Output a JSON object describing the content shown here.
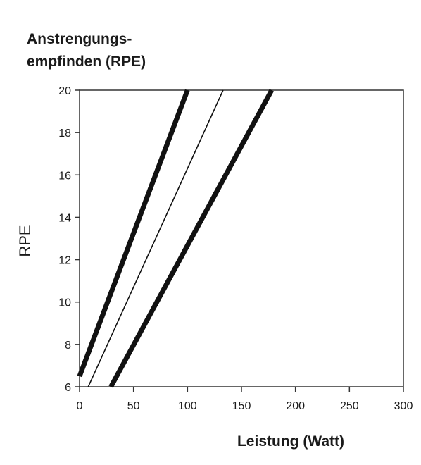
{
  "chart_data": {
    "type": "line",
    "title_lines": [
      "Anstrengungs-",
      "empfinden  (RPE)"
    ],
    "xlabel": "Leistung  (Watt)",
    "ylabel": "RPE",
    "xlim": [
      0,
      300
    ],
    "ylim": [
      6,
      20
    ],
    "xticks": [
      0,
      50,
      100,
      150,
      200,
      250,
      300
    ],
    "yticks": [
      6,
      8,
      10,
      12,
      14,
      16,
      18,
      20
    ],
    "grid": false,
    "colors": {
      "line": "#111111",
      "axis": "#333333"
    },
    "series": [
      {
        "style": "thick",
        "x": [
          0,
          100
        ],
        "y": [
          6.5,
          20
        ]
      },
      {
        "style": "thin",
        "x": [
          8,
          133
        ],
        "y": [
          6,
          20
        ]
      },
      {
        "style": "thick",
        "x": [
          29,
          178
        ],
        "y": [
          6,
          20
        ]
      }
    ]
  }
}
